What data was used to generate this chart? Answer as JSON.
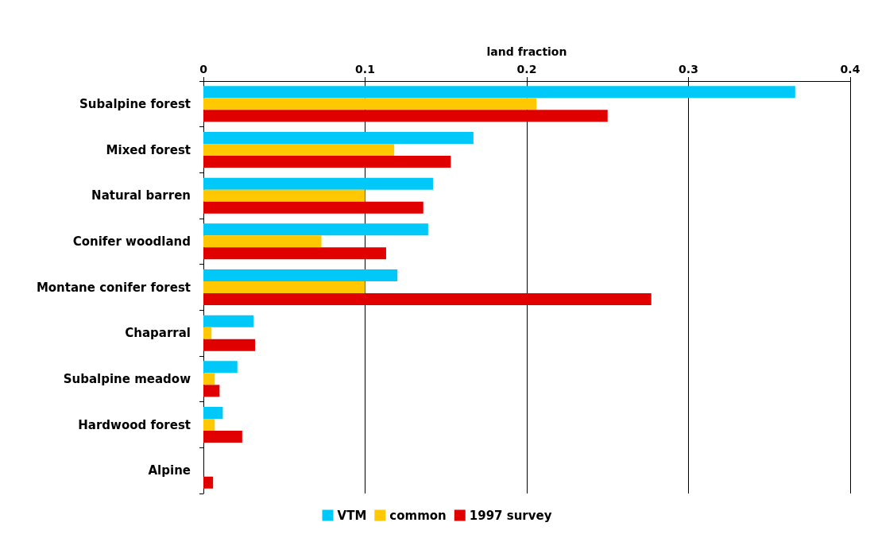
{
  "chart_data": {
    "type": "bar",
    "orientation": "horizontal",
    "xlabel": "land fraction",
    "categories": [
      "Subalpine forest",
      "Mixed forest",
      "Natural barren",
      "Conifer woodland",
      "Montane conifer forest",
      "Chaparral",
      "Subalpine meadow",
      "Hardwood forest",
      "Alpine"
    ],
    "series": [
      {
        "name": "VTM",
        "color": "#00c8f8",
        "values": [
          0.366,
          0.167,
          0.142,
          0.139,
          0.12,
          0.031,
          0.021,
          0.012,
          0
        ]
      },
      {
        "name": "common",
        "color": "#ffc800",
        "values": [
          0.206,
          0.118,
          0.1,
          0.073,
          0.1,
          0.005,
          0.007,
          0.007,
          0
        ]
      },
      {
        "name": "1997 survey",
        "color": "#e00000",
        "values": [
          0.25,
          0.153,
          0.136,
          0.113,
          0.277,
          0.032,
          0.01,
          0.024,
          0.006
        ]
      }
    ],
    "xlim": [
      0,
      0.4
    ],
    "xticks": [
      0,
      0.1,
      0.2,
      0.3,
      0.4
    ],
    "grid": "x",
    "legend": "bottom"
  }
}
